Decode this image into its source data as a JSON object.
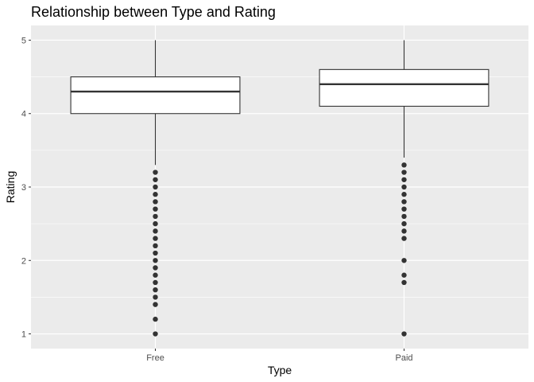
{
  "chart_data": {
    "type": "boxplot",
    "title": "Relationship between Type and Rating",
    "xlabel": "Type",
    "ylabel": "Rating",
    "ylim": [
      0.8,
      5.2
    ],
    "yticks": [
      1,
      2,
      3,
      4,
      5
    ],
    "grid": true,
    "categories": [
      "Free",
      "Paid"
    ],
    "boxes": [
      {
        "category": "Free",
        "whisker_low": 3.3,
        "q1": 4.0,
        "median": 4.3,
        "q3": 4.5,
        "whisker_high": 5.0,
        "outliers": [
          3.2,
          3.1,
          3.0,
          2.9,
          2.8,
          2.7,
          2.6,
          2.5,
          2.4,
          2.3,
          2.2,
          2.1,
          2.0,
          1.9,
          1.8,
          1.7,
          1.6,
          1.5,
          1.4,
          1.2,
          1.0
        ]
      },
      {
        "category": "Paid",
        "whisker_low": 3.4,
        "q1": 4.1,
        "median": 4.4,
        "q3": 4.6,
        "whisker_high": 5.0,
        "outliers": [
          3.3,
          3.2,
          3.1,
          3.0,
          2.9,
          2.8,
          2.7,
          2.6,
          2.5,
          2.4,
          2.3,
          2.0,
          1.8,
          1.7,
          1.0
        ]
      }
    ]
  }
}
